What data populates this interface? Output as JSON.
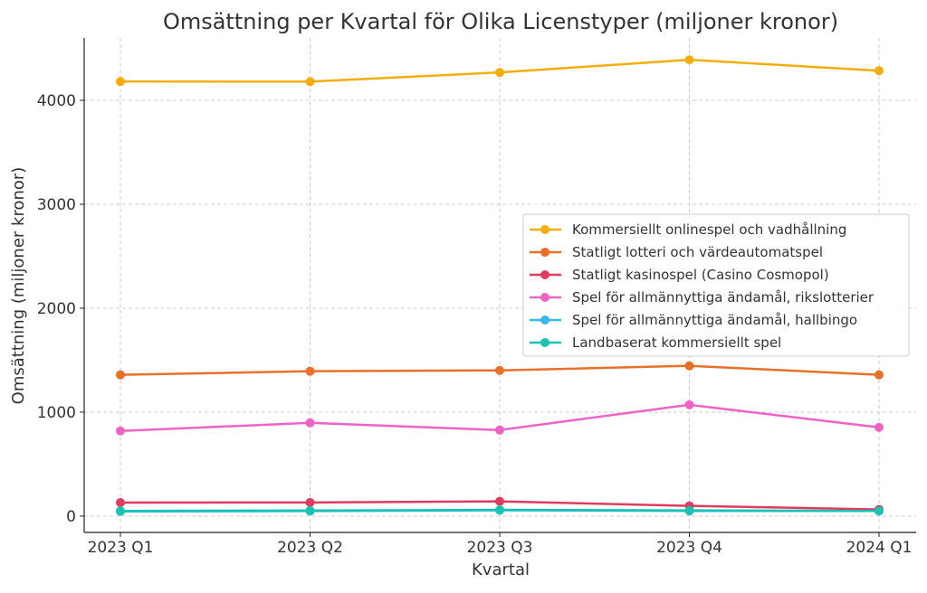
{
  "chart_data": {
    "type": "line",
    "title": "Omsättning per Kvartal för Olika Licenstyper (miljoner kronor)",
    "xlabel": "Kvartal",
    "ylabel": "Omsättning (miljoner kronor)",
    "categories": [
      "2023 Q1",
      "2023 Q2",
      "2023 Q3",
      "2023 Q4",
      "2024 Q1"
    ],
    "yticks": [
      0,
      1000,
      2000,
      3000,
      4000
    ],
    "ylim": [
      -157,
      4600
    ],
    "grid": true,
    "legend_position": "center-right",
    "series": [
      {
        "name": "Kommersiellt onlinespel och vadhållning",
        "color": "#f5ad0e",
        "values": [
          4181,
          4180,
          4268,
          4390,
          4285
        ]
      },
      {
        "name": "Statligt lotteri och värdeautomatspel",
        "color": "#ea6f27",
        "values": [
          1359,
          1394,
          1402,
          1446,
          1359
        ]
      },
      {
        "name": "Statligt kasinospel (Casino Cosmopol)",
        "color": "#e23a5c",
        "values": [
          130,
          131,
          142,
          99,
          64
        ]
      },
      {
        "name": "Spel för allmännyttiga ändamål, rikslotterier",
        "color": "#f063c6",
        "values": [
          819,
          897,
          828,
          1071,
          854
        ]
      },
      {
        "name": "Spel för allmännyttiga ändamål, hallbingo",
        "color": "#33b9ee",
        "values": [
          45,
          48,
          56,
          50,
          50
        ]
      },
      {
        "name": "Landbaserat kommersiellt spel",
        "color": "#19c3b3",
        "values": [
          50,
          54,
          60,
          55,
          50
        ]
      }
    ]
  }
}
